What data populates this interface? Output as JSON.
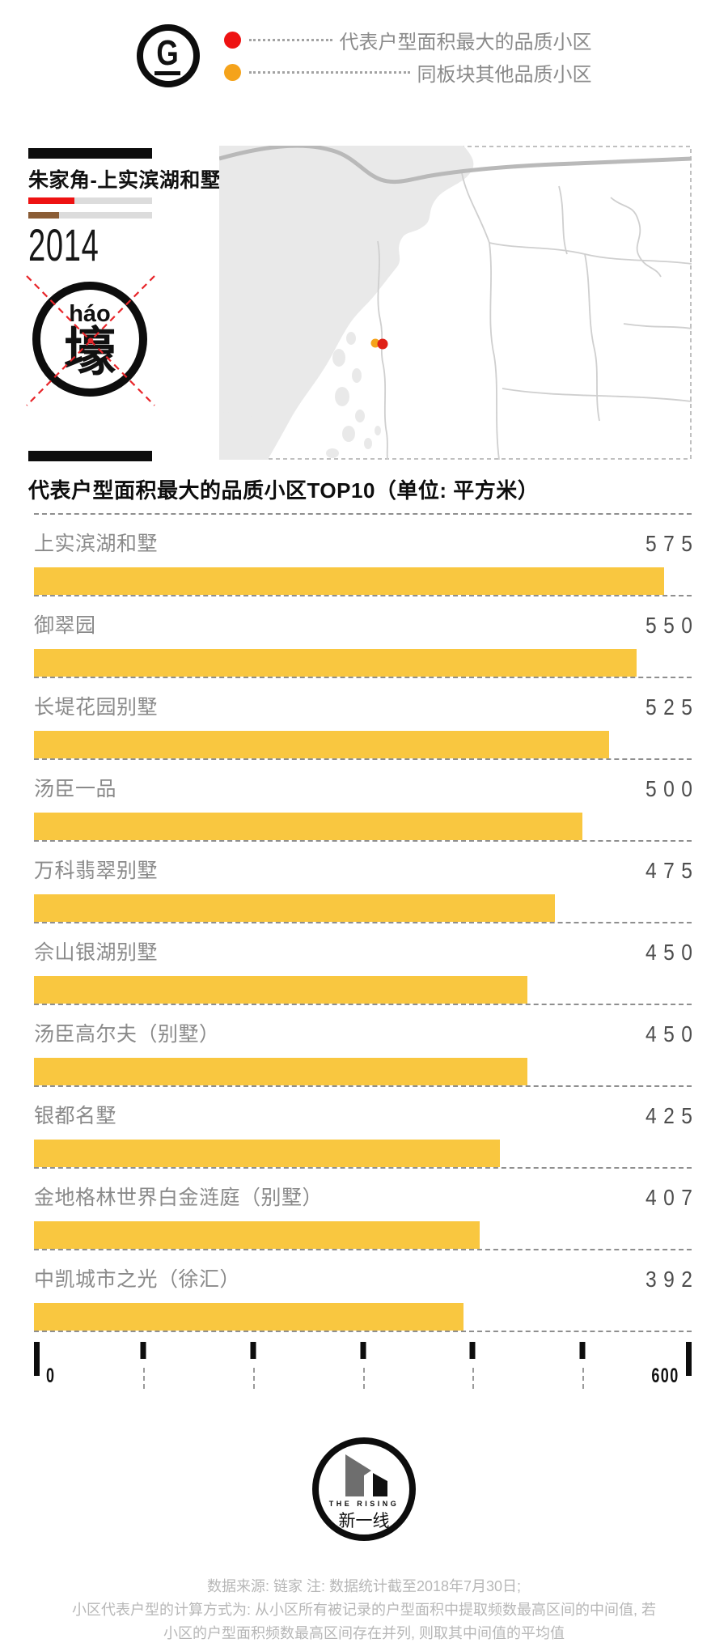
{
  "header": {
    "logo_letter": "G",
    "legend": [
      {
        "label": "代表户型面积最大的品质小区",
        "dot_color": "#ee1212"
      },
      {
        "label": "同板块其他品质小区",
        "dot_color": "#f5a31b"
      }
    ]
  },
  "info_panel": {
    "title": "朱家角-上实滨湖和墅",
    "year": "2014",
    "stamp": {
      "pinyin": "háo",
      "hanzi": "壕"
    },
    "progress_bars": [
      {
        "color": "#ee1212",
        "fraction": 0.37
      },
      {
        "color": "#8a5c35",
        "fraction": 0.25
      }
    ]
  },
  "map": {
    "marker_main_color": "#e02016",
    "marker_other_color": "#f5a31b"
  },
  "chart_data": {
    "type": "bar",
    "orientation": "horizontal",
    "title": "代表户型面积最大的品质小区TOP10（单位: 平方米）",
    "categories": [
      "上实滨湖和墅",
      "御翠园",
      "长堤花园别墅",
      "汤臣一品",
      "万科翡翠别墅",
      "佘山银湖别墅",
      "汤臣高尔夫（别墅）",
      "银都名墅",
      "金地格林世界白金涟庭（别墅）",
      "中凯城市之光（徐汇）"
    ],
    "values": [
      575,
      550,
      525,
      500,
      475,
      450,
      450,
      425,
      407,
      392
    ],
    "xlim": [
      0,
      600
    ],
    "xticks": [
      0,
      100,
      200,
      300,
      400,
      500,
      600
    ],
    "xtick_labels": {
      "min": "0",
      "max": "600"
    },
    "bar_color": "#f9c740",
    "grid": "dashed row baselines",
    "legend_position": "top"
  },
  "footer": {
    "logo": {
      "en": "THE RISING",
      "zh": "新一线"
    },
    "notes": [
      "数据来源: 链家  注: 数据统计截至2018年7月30日;",
      "小区代表户型的计算方式为: 从小区所有被记录的户型面积中提取频数最高区间的中间值, 若",
      "小区的户型面积频数最高区间存在并列, 则取其中间值的平均值"
    ]
  }
}
